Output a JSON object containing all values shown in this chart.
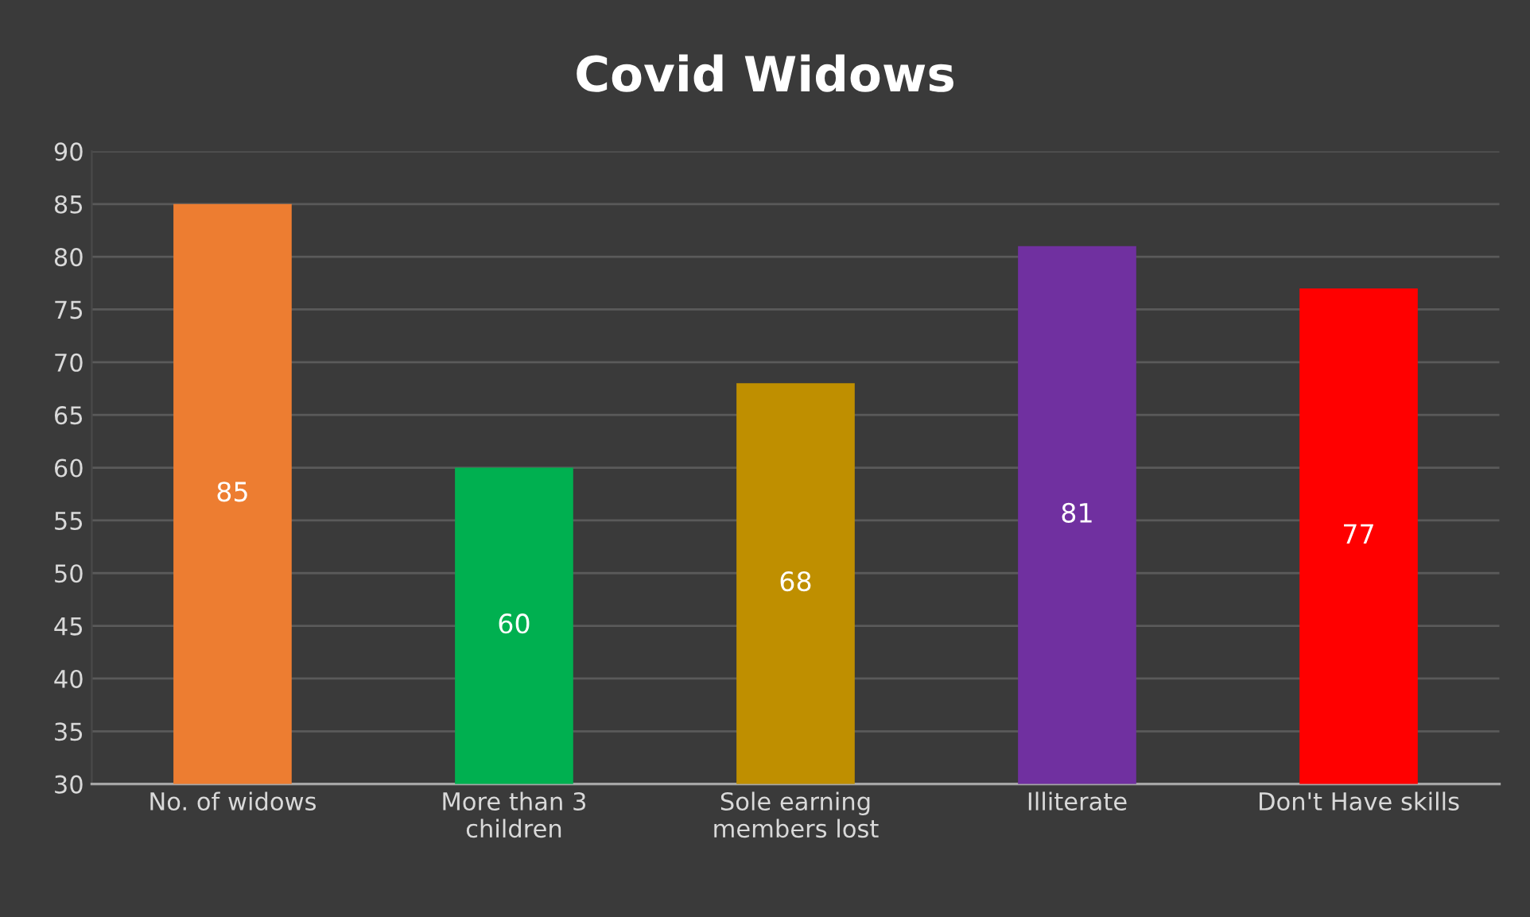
{
  "chart_data": {
    "type": "bar",
    "title": "Covid Widows",
    "categories": [
      "No. of widows",
      "More than 3\nchildren",
      "Sole earning\nmembers lost",
      "Illiterate",
      "Don't Have skills"
    ],
    "values": [
      85,
      60,
      68,
      81,
      77
    ],
    "colors": [
      "#ed7d31",
      "#00b050",
      "#bf8f00",
      "#7030a0",
      "#ff0000"
    ],
    "ylim": [
      30,
      90
    ],
    "yticks": [
      30,
      35,
      40,
      45,
      50,
      55,
      60,
      65,
      70,
      75,
      80,
      85,
      90
    ],
    "grid": "y",
    "data_labels": true
  }
}
